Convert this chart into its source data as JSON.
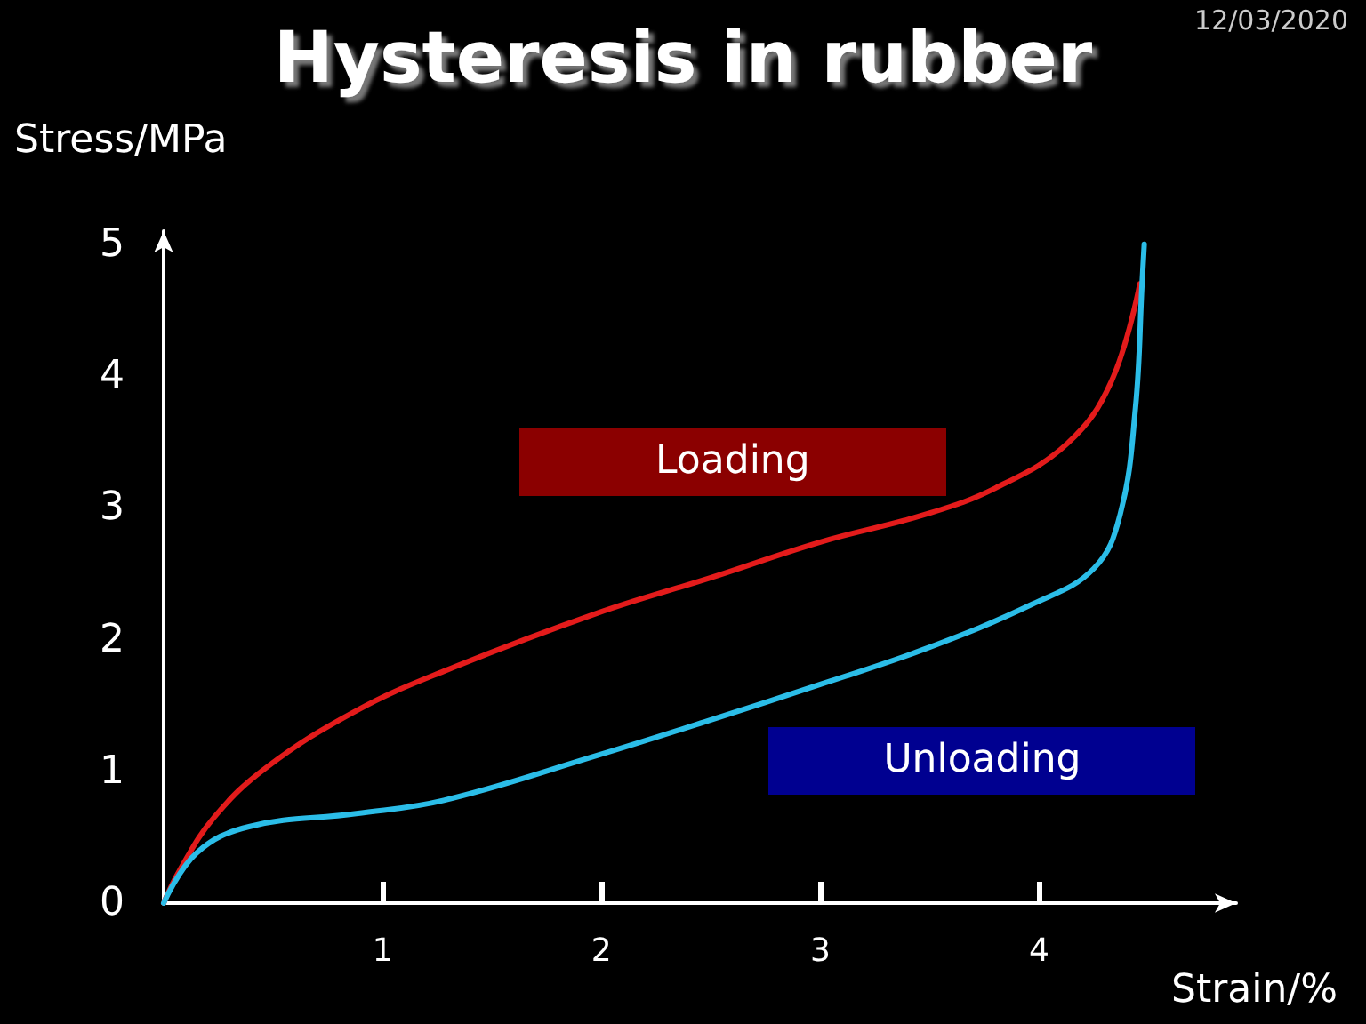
{
  "chart_data": {
    "type": "line",
    "title": "Hysteresis in rubber",
    "xlabel": "Strain/%",
    "ylabel": "Stress/MPa",
    "annotations": [
      "12/03/2020"
    ],
    "xlim": [
      0,
      4.9
    ],
    "xticks": [
      1,
      2,
      3,
      4
    ],
    "ylim": [
      0,
      5.1
    ],
    "yticks": [
      0,
      1,
      2,
      3,
      4,
      5
    ],
    "grid": false,
    "legend": false,
    "marker": "none",
    "line_style": "solid",
    "series": [
      {
        "name": "Loading",
        "color": "#e31b1b",
        "x": [
          0,
          0.07,
          0.23,
          0.47,
          0.88,
          1.28,
          1.98,
          2.5,
          3.0,
          3.48,
          3.8,
          4.13,
          4.33,
          4.46
        ],
        "values": [
          0,
          0.24,
          0.65,
          1.03,
          1.46,
          1.76,
          2.2,
          2.47,
          2.74,
          2.95,
          3.15,
          3.49,
          3.96,
          4.7
        ]
      },
      {
        "name": "Unloading",
        "color": "#2bbde8",
        "x": [
          0,
          0.15,
          0.39,
          0.88,
          1.28,
          1.98,
          2.5,
          3.0,
          3.48,
          3.97,
          4.25,
          4.37,
          4.44,
          4.47,
          4.48
        ],
        "values": [
          0,
          0.38,
          0.58,
          0.68,
          0.78,
          1.12,
          1.39,
          1.66,
          1.93,
          2.27,
          2.54,
          2.95,
          3.76,
          4.7,
          5.0
        ]
      }
    ]
  }
}
